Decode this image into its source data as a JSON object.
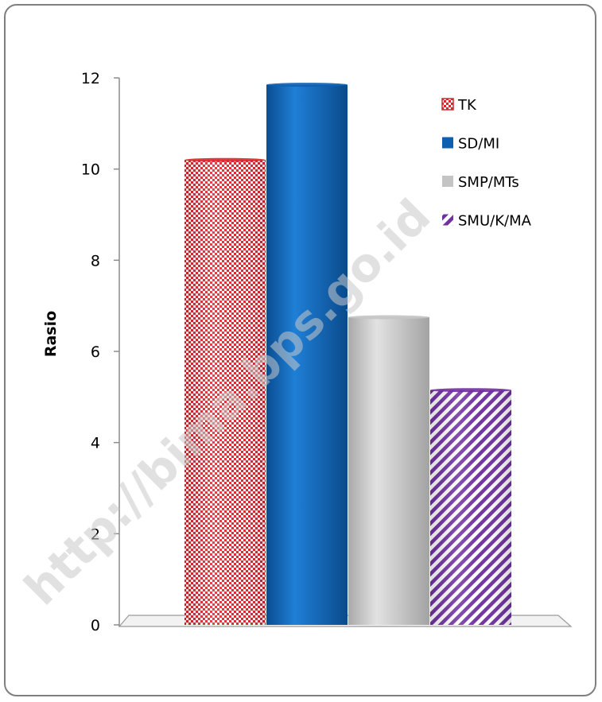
{
  "chart_data": {
    "type": "bar",
    "ylabel": "Rasio",
    "ylim": [
      0,
      12
    ],
    "yticks": [
      "0",
      "2",
      "4",
      "6",
      "8",
      "10",
      "12"
    ],
    "grid": false,
    "legend_position": "top-right",
    "series": [
      {
        "name": "TK",
        "values": [
          10.2
        ],
        "color": "#d7262c",
        "pattern": "checker"
      },
      {
        "name": "SD/MI",
        "values": [
          11.85
        ],
        "color": "#0e5fb0",
        "pattern": "solid"
      },
      {
        "name": "SMP/MTs",
        "values": [
          6.75
        ],
        "color": "#c4c4c4",
        "pattern": "solid"
      },
      {
        "name": "SMU/K/MA",
        "values": [
          5.15
        ],
        "color": "#7030a0",
        "pattern": "diagonal-stripes"
      }
    ]
  },
  "watermark": "http://bima.bps.go.id"
}
